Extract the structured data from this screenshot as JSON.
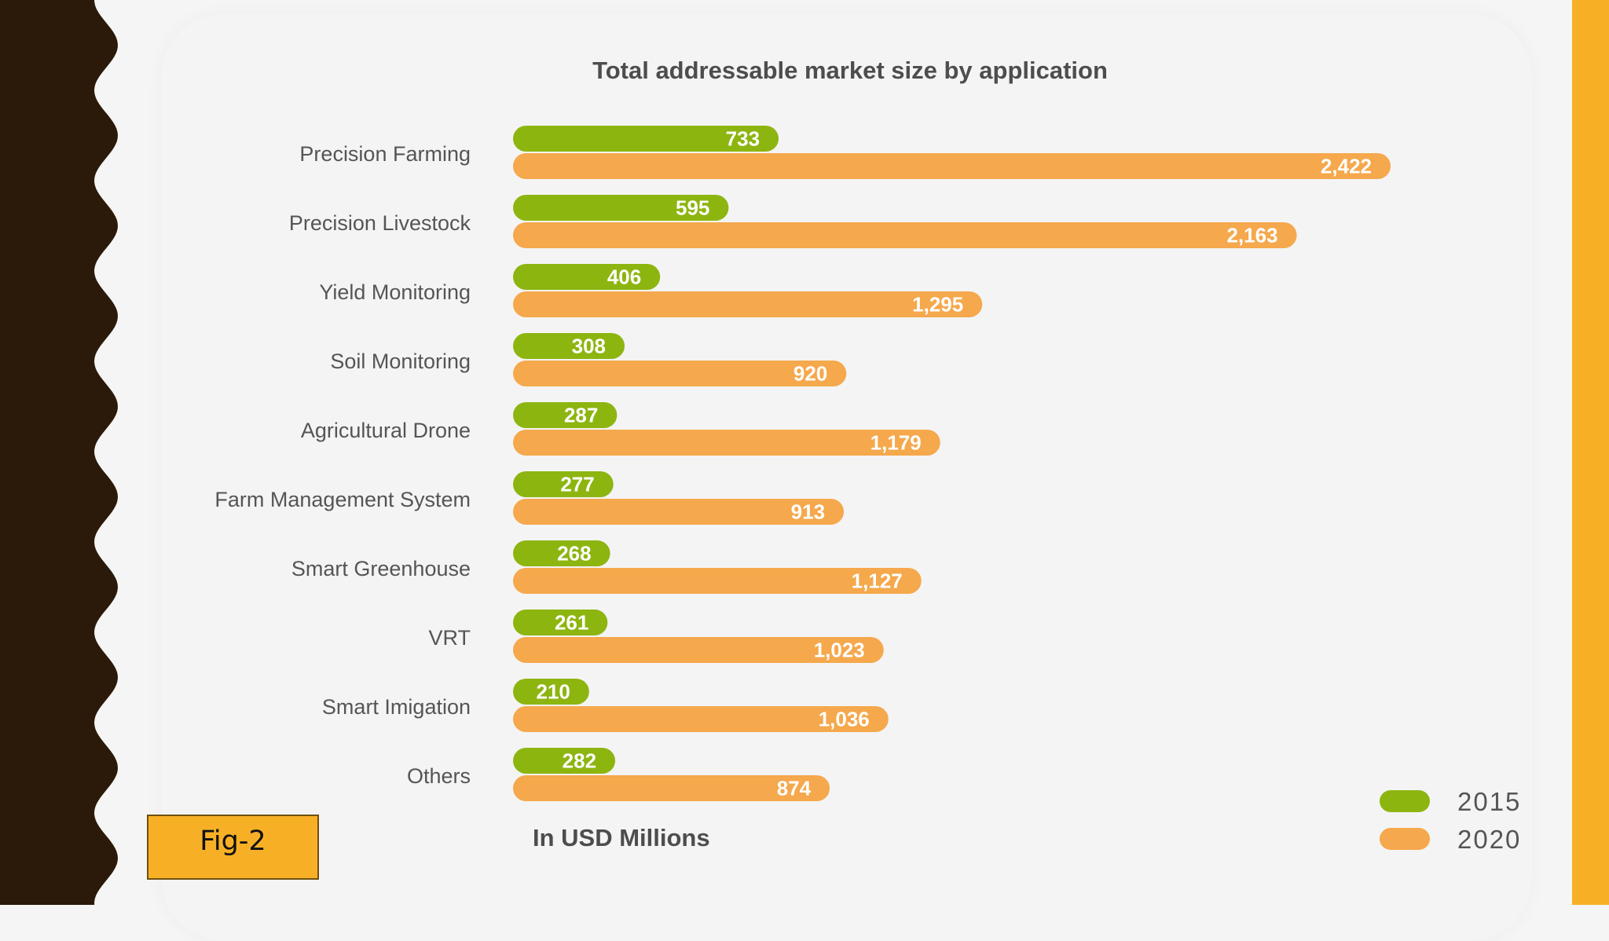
{
  "slide": {
    "figure_label": "Fig-2",
    "colors": {
      "left_decoration": "#2b1a09",
      "right_strip": "#f7b026",
      "figure_label_bg": "#f7b026"
    }
  },
  "chart_data": {
    "type": "bar",
    "orientation": "horizontal",
    "title": "Total addressable market size by application",
    "unit_note": "In USD Millions",
    "categories": [
      "Precision Farming",
      "Precision Livestock",
      "Yield Monitoring",
      "Soil Monitoring",
      "Agricultural Drone",
      "Farm Management System",
      "Smart Greenhouse",
      "VRT",
      "Smart Imigation",
      "Others"
    ],
    "series": [
      {
        "name": "2015",
        "color": "#8db510",
        "values": [
          733,
          595,
          406,
          308,
          287,
          277,
          268,
          261,
          210,
          282
        ],
        "labels": [
          "733",
          "595",
          "406",
          "308",
          "287",
          "277",
          "268",
          "261",
          "210",
          "282"
        ]
      },
      {
        "name": "2020",
        "color": "#f5a84c",
        "values": [
          2422,
          2163,
          1295,
          920,
          1179,
          913,
          1127,
          1023,
          1036,
          874
        ],
        "labels": [
          "2,422",
          "2,163",
          "1,295",
          "920",
          "1,179",
          "913",
          "1,127",
          "1,023",
          "1,036",
          "874"
        ]
      }
    ],
    "legend_position": "bottom-right",
    "grid": false,
    "xlim": [
      0,
      2422
    ]
  }
}
